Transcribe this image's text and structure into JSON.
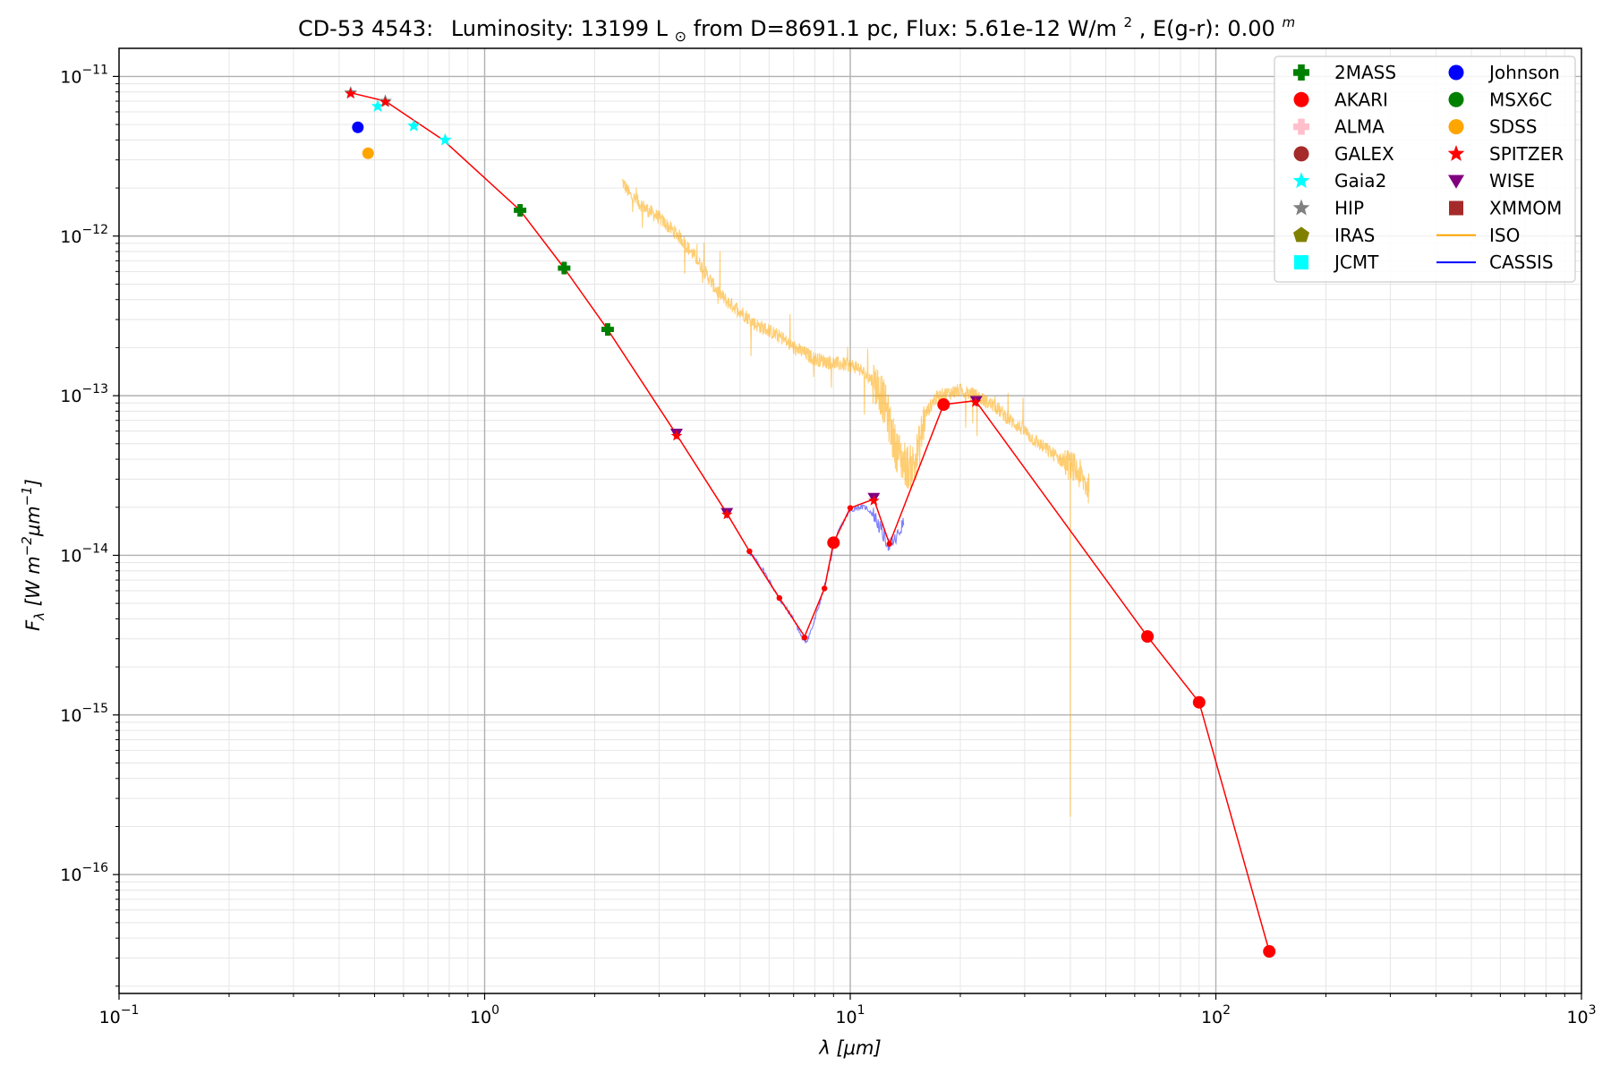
{
  "chart_data": {
    "type": "scatter",
    "title": {
      "star": "CD-53 4543:",
      "lum_prefix": "Luminosity: 13199 L",
      "lum_symbol": "⊙",
      "dist_flux": " from D=8691.1 pc, Flux: 5.61e-12 W/m",
      "flux_exp": "2",
      "ext": ", E(g-r): 0.00",
      "ext_sup": "m"
    },
    "xlabel": {
      "symbol": "λ",
      "unit": " [μm]"
    },
    "ylabel": {
      "symbol": "F",
      "sub": "λ",
      "unit": " [W m",
      "exp1": "−2",
      "mid": "μm",
      "exp2": "−1",
      "close": "]"
    },
    "xscale": "log",
    "yscale": "log",
    "xlim": [
      0.1,
      1000
    ],
    "ylim": [
      1.8e-17,
      1.5e-11
    ],
    "grid": true,
    "x_ticks": [
      {
        "value": 0.1,
        "base": "10",
        "exp": "−1"
      },
      {
        "value": 1,
        "base": "10",
        "exp": "0"
      },
      {
        "value": 10,
        "base": "10",
        "exp": "1"
      },
      {
        "value": 100,
        "base": "10",
        "exp": "2"
      },
      {
        "value": 1000,
        "base": "10",
        "exp": "3"
      }
    ],
    "y_ticks": [
      {
        "value": 1e-16,
        "base": "10",
        "exp": "−16"
      },
      {
        "value": 1e-15,
        "base": "10",
        "exp": "−15"
      },
      {
        "value": 1e-14,
        "base": "10",
        "exp": "−14"
      },
      {
        "value": 1e-13,
        "base": "10",
        "exp": "−13"
      },
      {
        "value": 1e-12,
        "base": "10",
        "exp": "−12"
      },
      {
        "value": 1e-11,
        "base": "10",
        "exp": "−11"
      }
    ],
    "legend_position": "top-right",
    "legend": [
      {
        "name": "2MASS",
        "marker": "plus",
        "color": "#008000"
      },
      {
        "name": "AKARI",
        "marker": "circle",
        "color": "#ff0000"
      },
      {
        "name": "ALMA",
        "marker": "plus",
        "color": "#ffc0cb"
      },
      {
        "name": "GALEX",
        "marker": "circle",
        "color": "#a52a2a"
      },
      {
        "name": "Gaia2",
        "marker": "star",
        "color": "#00ffff"
      },
      {
        "name": "HIP",
        "marker": "star",
        "color": "#808080"
      },
      {
        "name": "IRAS",
        "marker": "pentagon",
        "color": "#808000"
      },
      {
        "name": "JCMT",
        "marker": "square",
        "color": "#00ffff"
      },
      {
        "name": "Johnson",
        "marker": "circle",
        "color": "#0000ff"
      },
      {
        "name": "MSX6C",
        "marker": "circle",
        "color": "#008000"
      },
      {
        "name": "SDSS",
        "marker": "circle",
        "color": "#ffa500"
      },
      {
        "name": "SPITZER",
        "marker": "star",
        "color": "#ff0000"
      },
      {
        "name": "WISE",
        "marker": "triangle-down",
        "color": "#800080"
      },
      {
        "name": "XMMOM",
        "marker": "square",
        "color": "#a52a2a"
      },
      {
        "name": "ISO",
        "marker": "line",
        "color": "#ffa500"
      },
      {
        "name": "CASSIS",
        "marker": "line",
        "color": "#0000ff"
      }
    ],
    "sed_model": {
      "color": "#ff0000",
      "points": [
        [
          0.43,
          7.9e-12
        ],
        [
          0.535,
          7e-12
        ],
        [
          0.77,
          4e-12
        ],
        [
          1.25,
          1.45e-12
        ],
        [
          1.65,
          6.3e-13
        ],
        [
          2.17,
          2.6e-13
        ],
        [
          3.35,
          5.7e-14
        ],
        [
          4.6,
          1.83e-14
        ],
        [
          5.3,
          1.06e-14
        ],
        [
          6.4,
          5.4e-15
        ],
        [
          7.5,
          3.1e-15
        ],
        [
          8.5,
          6.2e-15
        ],
        [
          9.0,
          1.2e-14
        ],
        [
          10.0,
          1.98e-14
        ],
        [
          11.6,
          2.25e-14
        ],
        [
          12.8,
          1.18e-14
        ],
        [
          18.0,
          8.8e-14
        ],
        [
          22.0,
          9.3e-14
        ],
        [
          65.0,
          3.1e-15
        ],
        [
          90.0,
          1.2e-15
        ],
        [
          140.0,
          3.3e-17
        ]
      ]
    },
    "photometry": [
      {
        "survey": "HIP",
        "x": 0.43,
        "y": 7.9e-12
      },
      {
        "survey": "HIP",
        "x": 0.535,
        "y": 7e-12
      },
      {
        "survey": "SPITZER",
        "x": 0.43,
        "y": 7.8e-12
      },
      {
        "survey": "SPITZER",
        "x": 0.535,
        "y": 6.9e-12
      },
      {
        "survey": "Johnson",
        "x": 0.45,
        "y": 4.8e-12
      },
      {
        "survey": "SDSS",
        "x": 0.48,
        "y": 3.3e-12
      },
      {
        "survey": "Gaia2",
        "x": 0.51,
        "y": 6.5e-12
      },
      {
        "survey": "Gaia2",
        "x": 0.64,
        "y": 4.9e-12
      },
      {
        "survey": "Gaia2",
        "x": 0.78,
        "y": 4e-12
      },
      {
        "survey": "2MASS",
        "x": 1.25,
        "y": 1.45e-12
      },
      {
        "survey": "2MASS",
        "x": 1.65,
        "y": 6.3e-13
      },
      {
        "survey": "2MASS",
        "x": 2.17,
        "y": 2.6e-13
      },
      {
        "survey": "WISE",
        "x": 3.35,
        "y": 5.8e-14
      },
      {
        "survey": "WISE",
        "x": 4.6,
        "y": 1.85e-14
      },
      {
        "survey": "WISE",
        "x": 11.6,
        "y": 2.3e-14
      },
      {
        "survey": "WISE",
        "x": 22.1,
        "y": 9.3e-14
      },
      {
        "survey": "SPITZER",
        "x": 3.35,
        "y": 5.6e-14
      },
      {
        "survey": "SPITZER",
        "x": 4.6,
        "y": 1.8e-14
      },
      {
        "survey": "SPITZER",
        "x": 5.3,
        "y": 1.06e-14
      },
      {
        "survey": "SPITZER",
        "x": 6.4,
        "y": 5.4e-15
      },
      {
        "survey": "SPITZER",
        "x": 7.5,
        "y": 3.05e-15
      },
      {
        "survey": "SPITZER",
        "x": 8.5,
        "y": 6.2e-15
      },
      {
        "survey": "SPITZER",
        "x": 10.0,
        "y": 1.98e-14
      },
      {
        "survey": "SPITZER",
        "x": 11.6,
        "y": 2.2e-14
      },
      {
        "survey": "SPITZER",
        "x": 12.8,
        "y": 1.18e-14
      },
      {
        "survey": "SPITZER",
        "x": 22.0,
        "y": 9.1e-14
      },
      {
        "survey": "AKARI",
        "x": 9.0,
        "y": 1.2e-14
      },
      {
        "survey": "AKARI",
        "x": 18.0,
        "y": 8.8e-14
      },
      {
        "survey": "AKARI",
        "x": 65.0,
        "y": 3.1e-15
      },
      {
        "survey": "AKARI",
        "x": 90.0,
        "y": 1.2e-15
      },
      {
        "survey": "AKARI",
        "x": 140.0,
        "y": 3.3e-17
      }
    ],
    "iso_spectrum": {
      "color": "#ffa500",
      "points": [
        [
          2.38,
          2.2e-12
        ],
        [
          2.5,
          1.8e-12
        ],
        [
          2.8,
          1.45e-12
        ],
        [
          3.0,
          1.3e-12
        ],
        [
          3.4,
          1e-12
        ],
        [
          3.8,
          7.2e-13
        ],
        [
          4.0,
          6e-13
        ],
        [
          4.3,
          4.6e-13
        ],
        [
          4.6,
          3.9e-13
        ],
        [
          5.0,
          3.4e-13
        ],
        [
          5.5,
          2.8e-13
        ],
        [
          6.0,
          2.55e-13
        ],
        [
          6.5,
          2.3e-13
        ],
        [
          7.0,
          2e-13
        ],
        [
          7.5,
          1.85e-13
        ],
        [
          8.0,
          1.7e-13
        ],
        [
          9.0,
          1.6e-13
        ],
        [
          10.0,
          1.55e-13
        ],
        [
          10.5,
          1.5e-13
        ],
        [
          11.0,
          1.35e-13
        ],
        [
          11.5,
          1.25e-13
        ],
        [
          12.0,
          1.1e-13
        ],
        [
          12.6,
          8e-14
        ],
        [
          13.2,
          5e-14
        ],
        [
          13.8,
          4e-14
        ],
        [
          14.5,
          3.5e-14
        ],
        [
          15.0,
          3.8e-14
        ],
        [
          15.5,
          5e-14
        ],
        [
          16.0,
          7.5e-14
        ],
        [
          17.0,
          9.5e-14
        ],
        [
          18.0,
          1.02e-13
        ],
        [
          19.0,
          1.05e-13
        ],
        [
          20.0,
          1.08e-13
        ],
        [
          21.0,
          1.04e-13
        ],
        [
          22.0,
          1e-13
        ],
        [
          23.0,
          9.5e-14
        ],
        [
          25.0,
          8.5e-14
        ],
        [
          27.0,
          7.2e-14
        ],
        [
          30.0,
          6e-14
        ],
        [
          32.0,
          5.2e-14
        ],
        [
          35.0,
          4.5e-14
        ],
        [
          38.0,
          3.9e-14
        ],
        [
          39.7,
          3.7e-14
        ],
        [
          40.0,
          2.3e-16
        ],
        [
          40.3,
          3.6e-14
        ],
        [
          42.0,
          3.3e-14
        ],
        [
          45.0,
          2.6e-14
        ]
      ]
    },
    "cassis_spectrum": {
      "color": "#0000ff",
      "points": [
        [
          5.3,
          1.05e-14
        ],
        [
          5.8,
          8e-15
        ],
        [
          6.4,
          5.3e-15
        ],
        [
          7.0,
          4e-15
        ],
        [
          7.4,
          3e-15
        ],
        [
          7.6,
          2.9e-15
        ],
        [
          7.9,
          3.6e-15
        ],
        [
          8.2,
          4.8e-15
        ],
        [
          8.6,
          7e-15
        ],
        [
          9.0,
          1.15e-14
        ],
        [
          9.4,
          1.5e-14
        ],
        [
          9.9,
          1.85e-14
        ],
        [
          10.4,
          2e-14
        ],
        [
          11.0,
          2e-14
        ],
        [
          11.6,
          1.8e-14
        ],
        [
          12.3,
          1.35e-14
        ],
        [
          12.8,
          1.15e-14
        ],
        [
          13.3,
          1.25e-14
        ],
        [
          14.0,
          1.6e-14
        ]
      ]
    }
  }
}
